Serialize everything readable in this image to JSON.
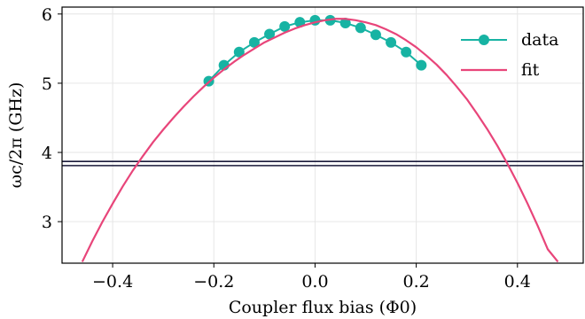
{
  "chart_data": {
    "type": "line",
    "xlabel": "Coupler flux bias (Φ0)",
    "ylabel": "ωc/2π (GHz)",
    "xlim": [
      -0.5,
      0.53
    ],
    "ylim": [
      2.4,
      6.1
    ],
    "xticks": [
      -0.4,
      -0.2,
      0.0,
      0.2,
      0.4
    ],
    "xtick_labels": [
      "−0.4",
      "−0.2",
      "0.0",
      "0.2",
      "0.4"
    ],
    "yticks": [
      3,
      4,
      5,
      6
    ],
    "ytick_labels": [
      "3",
      "4",
      "5",
      "6"
    ],
    "grid": true,
    "legend_position": "top-right",
    "series": [
      {
        "name": "data",
        "kind": "line-marker",
        "color": "#17b3a3",
        "x": [
          -0.21,
          -0.18,
          -0.15,
          -0.12,
          -0.09,
          -0.06,
          -0.03,
          0.0,
          0.03,
          0.06,
          0.09,
          0.12,
          0.15,
          0.18,
          0.21
        ],
        "y": [
          5.03,
          5.26,
          5.45,
          5.59,
          5.71,
          5.82,
          5.88,
          5.91,
          5.91,
          5.87,
          5.8,
          5.7,
          5.59,
          5.45,
          5.26
        ]
      },
      {
        "name": "fit",
        "kind": "curve",
        "color": "#e8457a",
        "x": [
          -0.46,
          -0.44,
          -0.42,
          -0.4,
          -0.38,
          -0.36,
          -0.34,
          -0.32,
          -0.3,
          -0.28,
          -0.26,
          -0.24,
          -0.22,
          -0.2,
          -0.18,
          -0.16,
          -0.14,
          -0.12,
          -0.1,
          -0.08,
          -0.06,
          -0.04,
          -0.02,
          0.0,
          0.02,
          0.04,
          0.06,
          0.08,
          0.1,
          0.12,
          0.14,
          0.16,
          0.18,
          0.2,
          0.22,
          0.24,
          0.26,
          0.28,
          0.3,
          0.32,
          0.34,
          0.36,
          0.38,
          0.4,
          0.42,
          0.44,
          0.46,
          0.48
        ],
        "y": [
          2.42,
          2.72,
          3.0,
          3.26,
          3.51,
          3.74,
          3.95,
          4.15,
          4.33,
          4.5,
          4.66,
          4.81,
          4.95,
          5.08,
          5.2,
          5.31,
          5.41,
          5.5,
          5.59,
          5.66,
          5.73,
          5.79,
          5.84,
          5.88,
          5.91,
          5.93,
          5.93,
          5.91,
          5.88,
          5.84,
          5.78,
          5.71,
          5.62,
          5.52,
          5.4,
          5.27,
          5.12,
          4.95,
          4.77,
          4.56,
          4.34,
          4.1,
          3.84,
          3.56,
          3.26,
          2.94,
          2.6,
          2.42
        ]
      }
    ],
    "hlines": [
      {
        "y": 3.87,
        "color": "#1a1a3a"
      },
      {
        "y": 3.81,
        "color": "#1a1a3a"
      }
    ]
  }
}
